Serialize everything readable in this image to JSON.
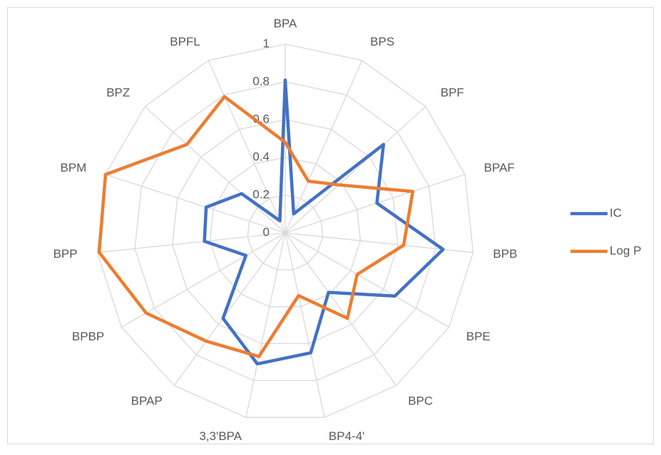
{
  "chart_data": {
    "type": "radar",
    "categories": [
      "BPA",
      "BPS",
      "BPF",
      "BPAF",
      "BPB",
      "BPE",
      "BPC",
      "BP4-4'",
      "3,3'BPA",
      "BPAP",
      "BPBP",
      "BPP",
      "BPM",
      "BPZ",
      "BPFL"
    ],
    "series": [
      {
        "name": "IC",
        "color": "#4472c4",
        "values": [
          0.81,
          0.11,
          0.7,
          0.51,
          0.84,
          0.67,
          0.39,
          0.65,
          0.71,
          0.56,
          0.24,
          0.43,
          0.44,
          0.31,
          0.07
        ]
      },
      {
        "name": "Log P",
        "color": "#ed7d31",
        "values": [
          0.48,
          0.3,
          0.38,
          0.71,
          0.63,
          0.44,
          0.56,
          0.34,
          0.67,
          0.71,
          0.85,
          0.99,
          1.0,
          0.7,
          0.79
        ]
      }
    ],
    "rlim": [
      0,
      1
    ],
    "rticks": [
      0,
      0.2,
      0.4,
      0.6,
      0.8,
      1
    ],
    "grid": true,
    "legend": "right"
  }
}
